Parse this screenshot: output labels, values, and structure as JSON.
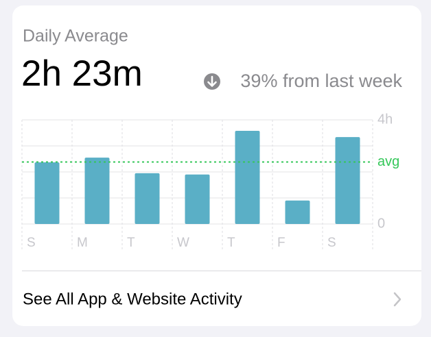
{
  "header": {
    "title": "Daily Average",
    "total": "2h 23m",
    "change": "39% from last week"
  },
  "link": {
    "label": "See All App & Website Activity"
  },
  "chart_data": {
    "type": "bar",
    "categories": [
      "S",
      "M",
      "T",
      "W",
      "T",
      "F",
      "S"
    ],
    "values": [
      2.37,
      2.55,
      1.95,
      1.9,
      3.58,
      0.9,
      3.34
    ],
    "color": "#5aafc6",
    "ylim": [
      0,
      4
    ],
    "yticks": [
      0,
      {
        "value": 4,
        "label": "4h"
      }
    ],
    "minor_gridlines": [
      1,
      2,
      3
    ],
    "average": {
      "value": 2.38,
      "label": "avg",
      "color": "#34c759"
    }
  }
}
